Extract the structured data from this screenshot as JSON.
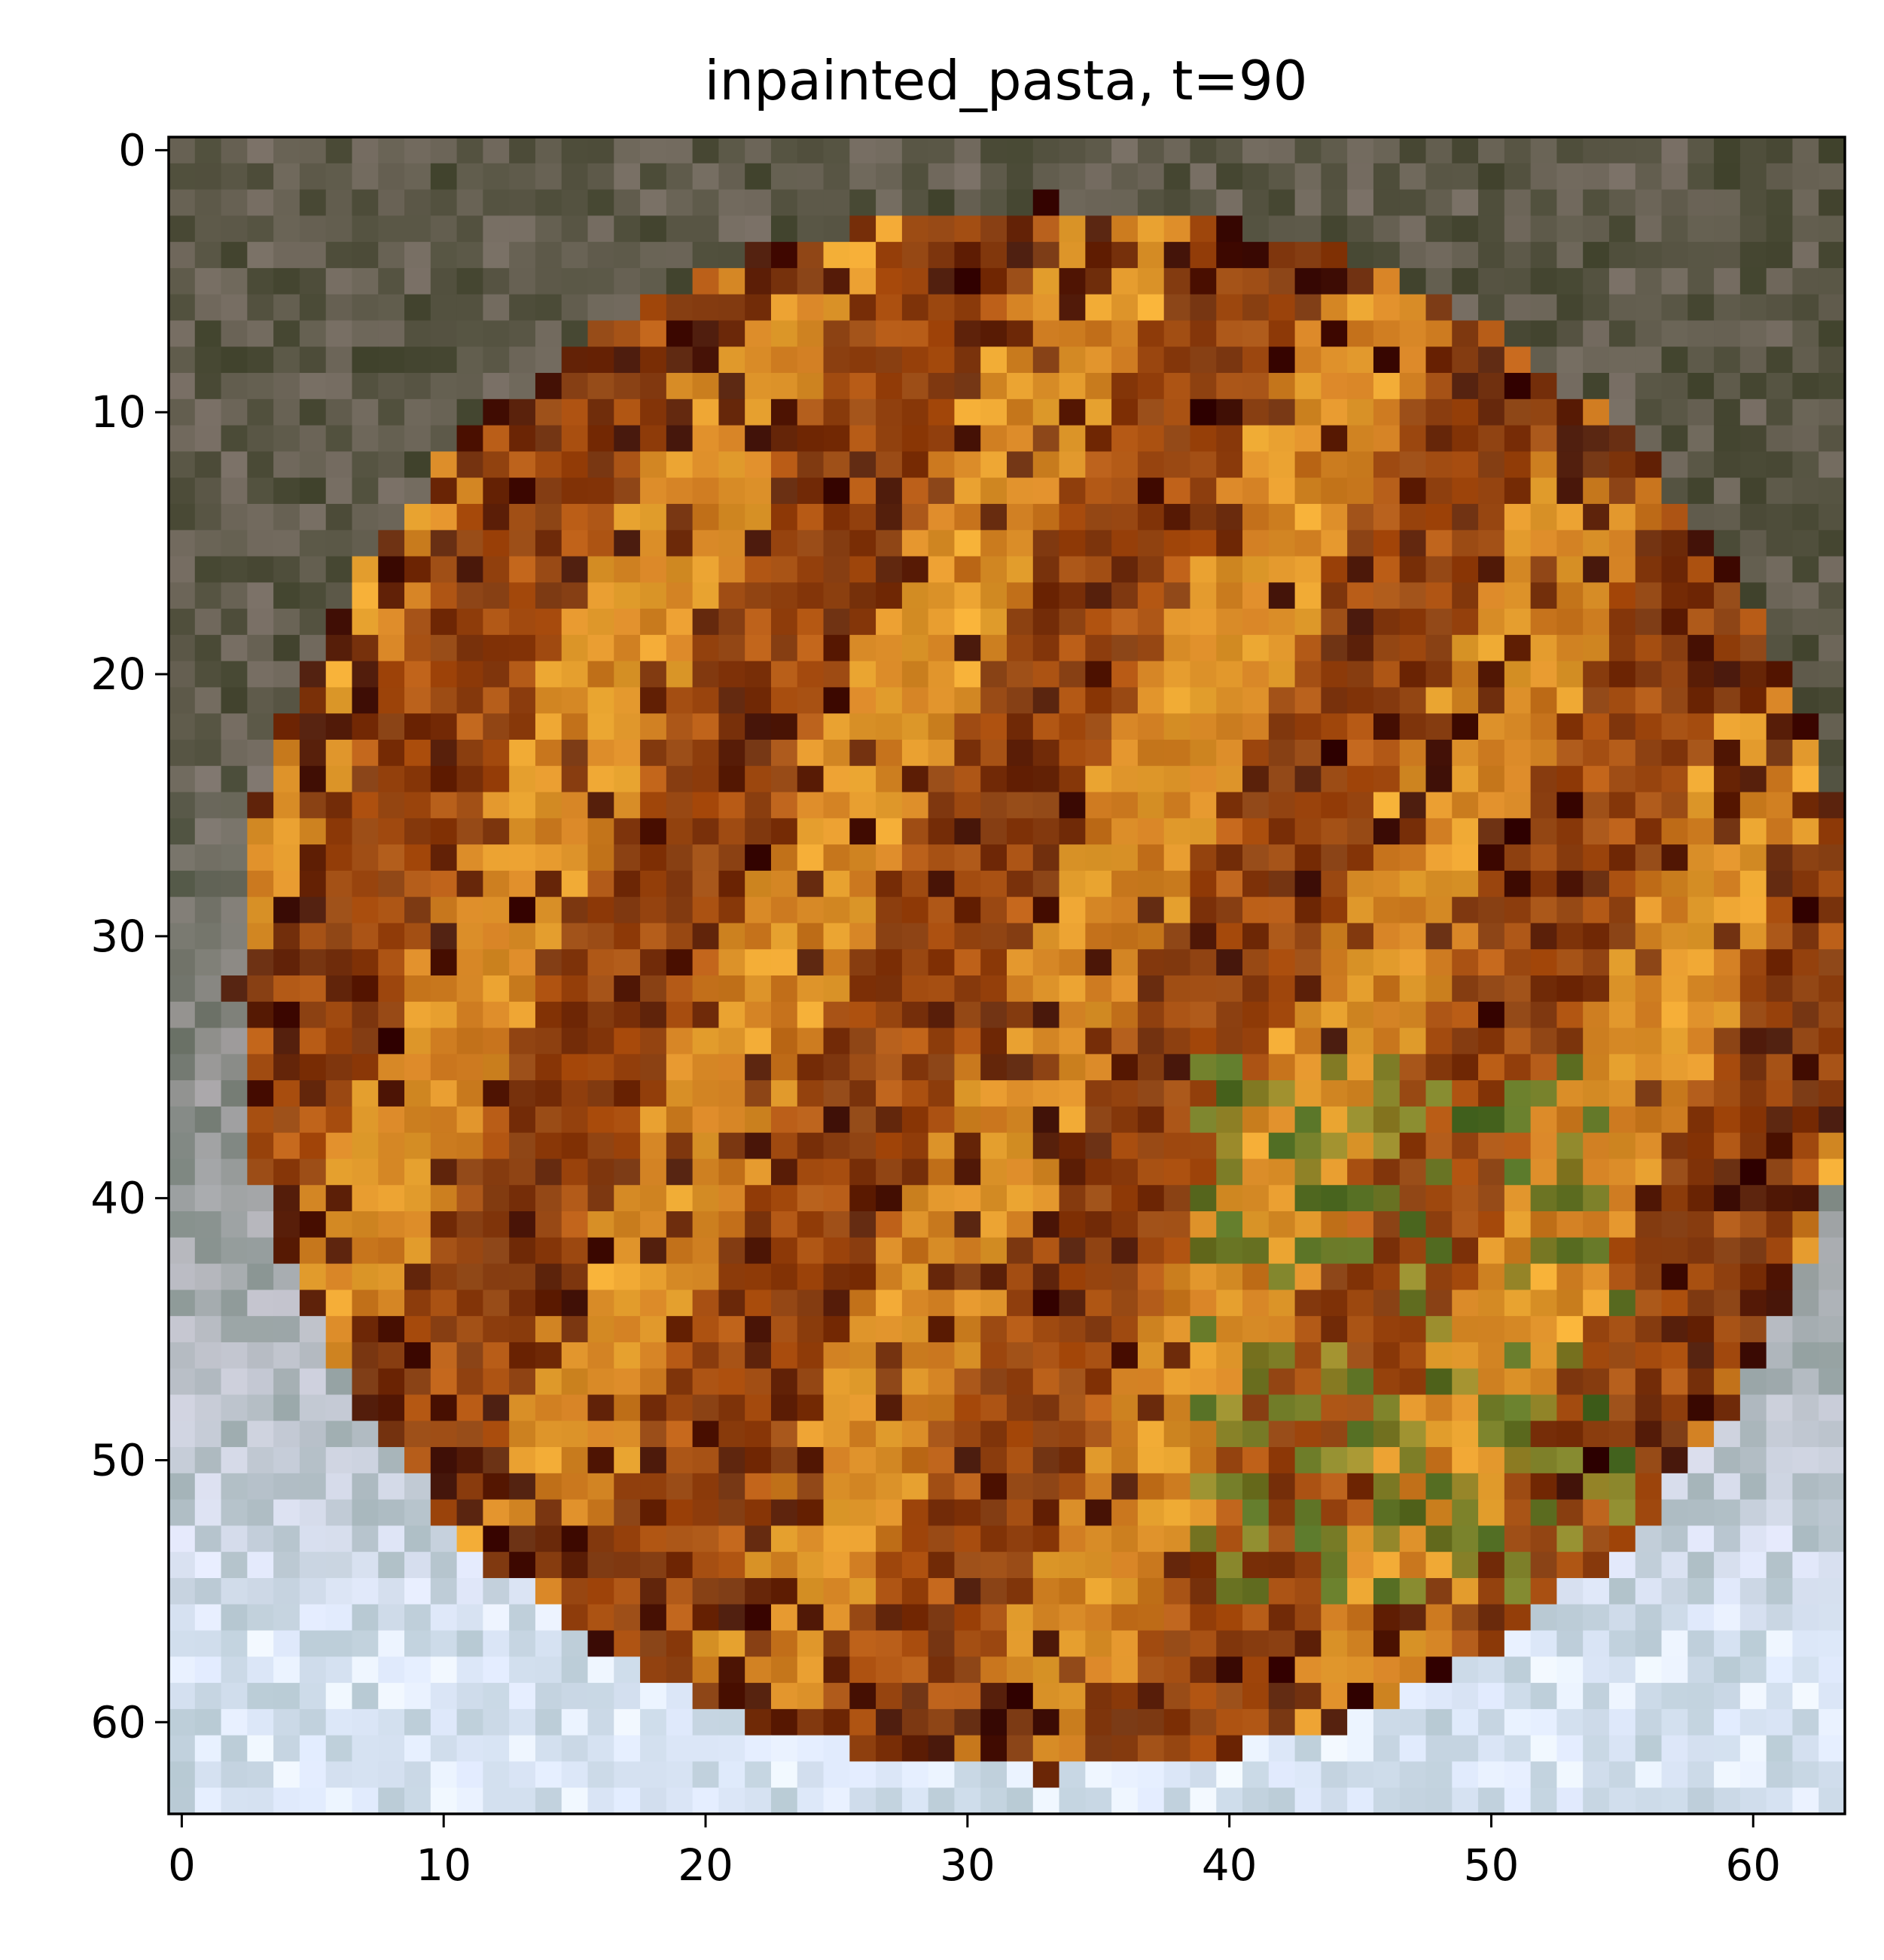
{
  "title": "inpainted_pasta, t=90",
  "image": {
    "grid_size": 64,
    "description_regions": {
      "plate_top_color": "#5e5a4a",
      "plate_bottom_color": "#d6e2f2",
      "food_base_color": "#b85a14",
      "noodle_color": "#e8a430",
      "herb_color": "#4a6a22",
      "shadow_color": "#3a0c06"
    }
  },
  "axes": {
    "x_ticks": [
      "0",
      "10",
      "20",
      "30",
      "40",
      "50",
      "60"
    ],
    "y_ticks": [
      "0",
      "10",
      "20",
      "30",
      "40",
      "50",
      "60"
    ],
    "x_tick_values": [
      0,
      10,
      20,
      30,
      40,
      50,
      60
    ],
    "y_tick_values": [
      0,
      10,
      20,
      30,
      40,
      50,
      60
    ],
    "xlim": [
      -0.5,
      63.5
    ],
    "ylim": [
      63.5,
      -0.5
    ]
  }
}
